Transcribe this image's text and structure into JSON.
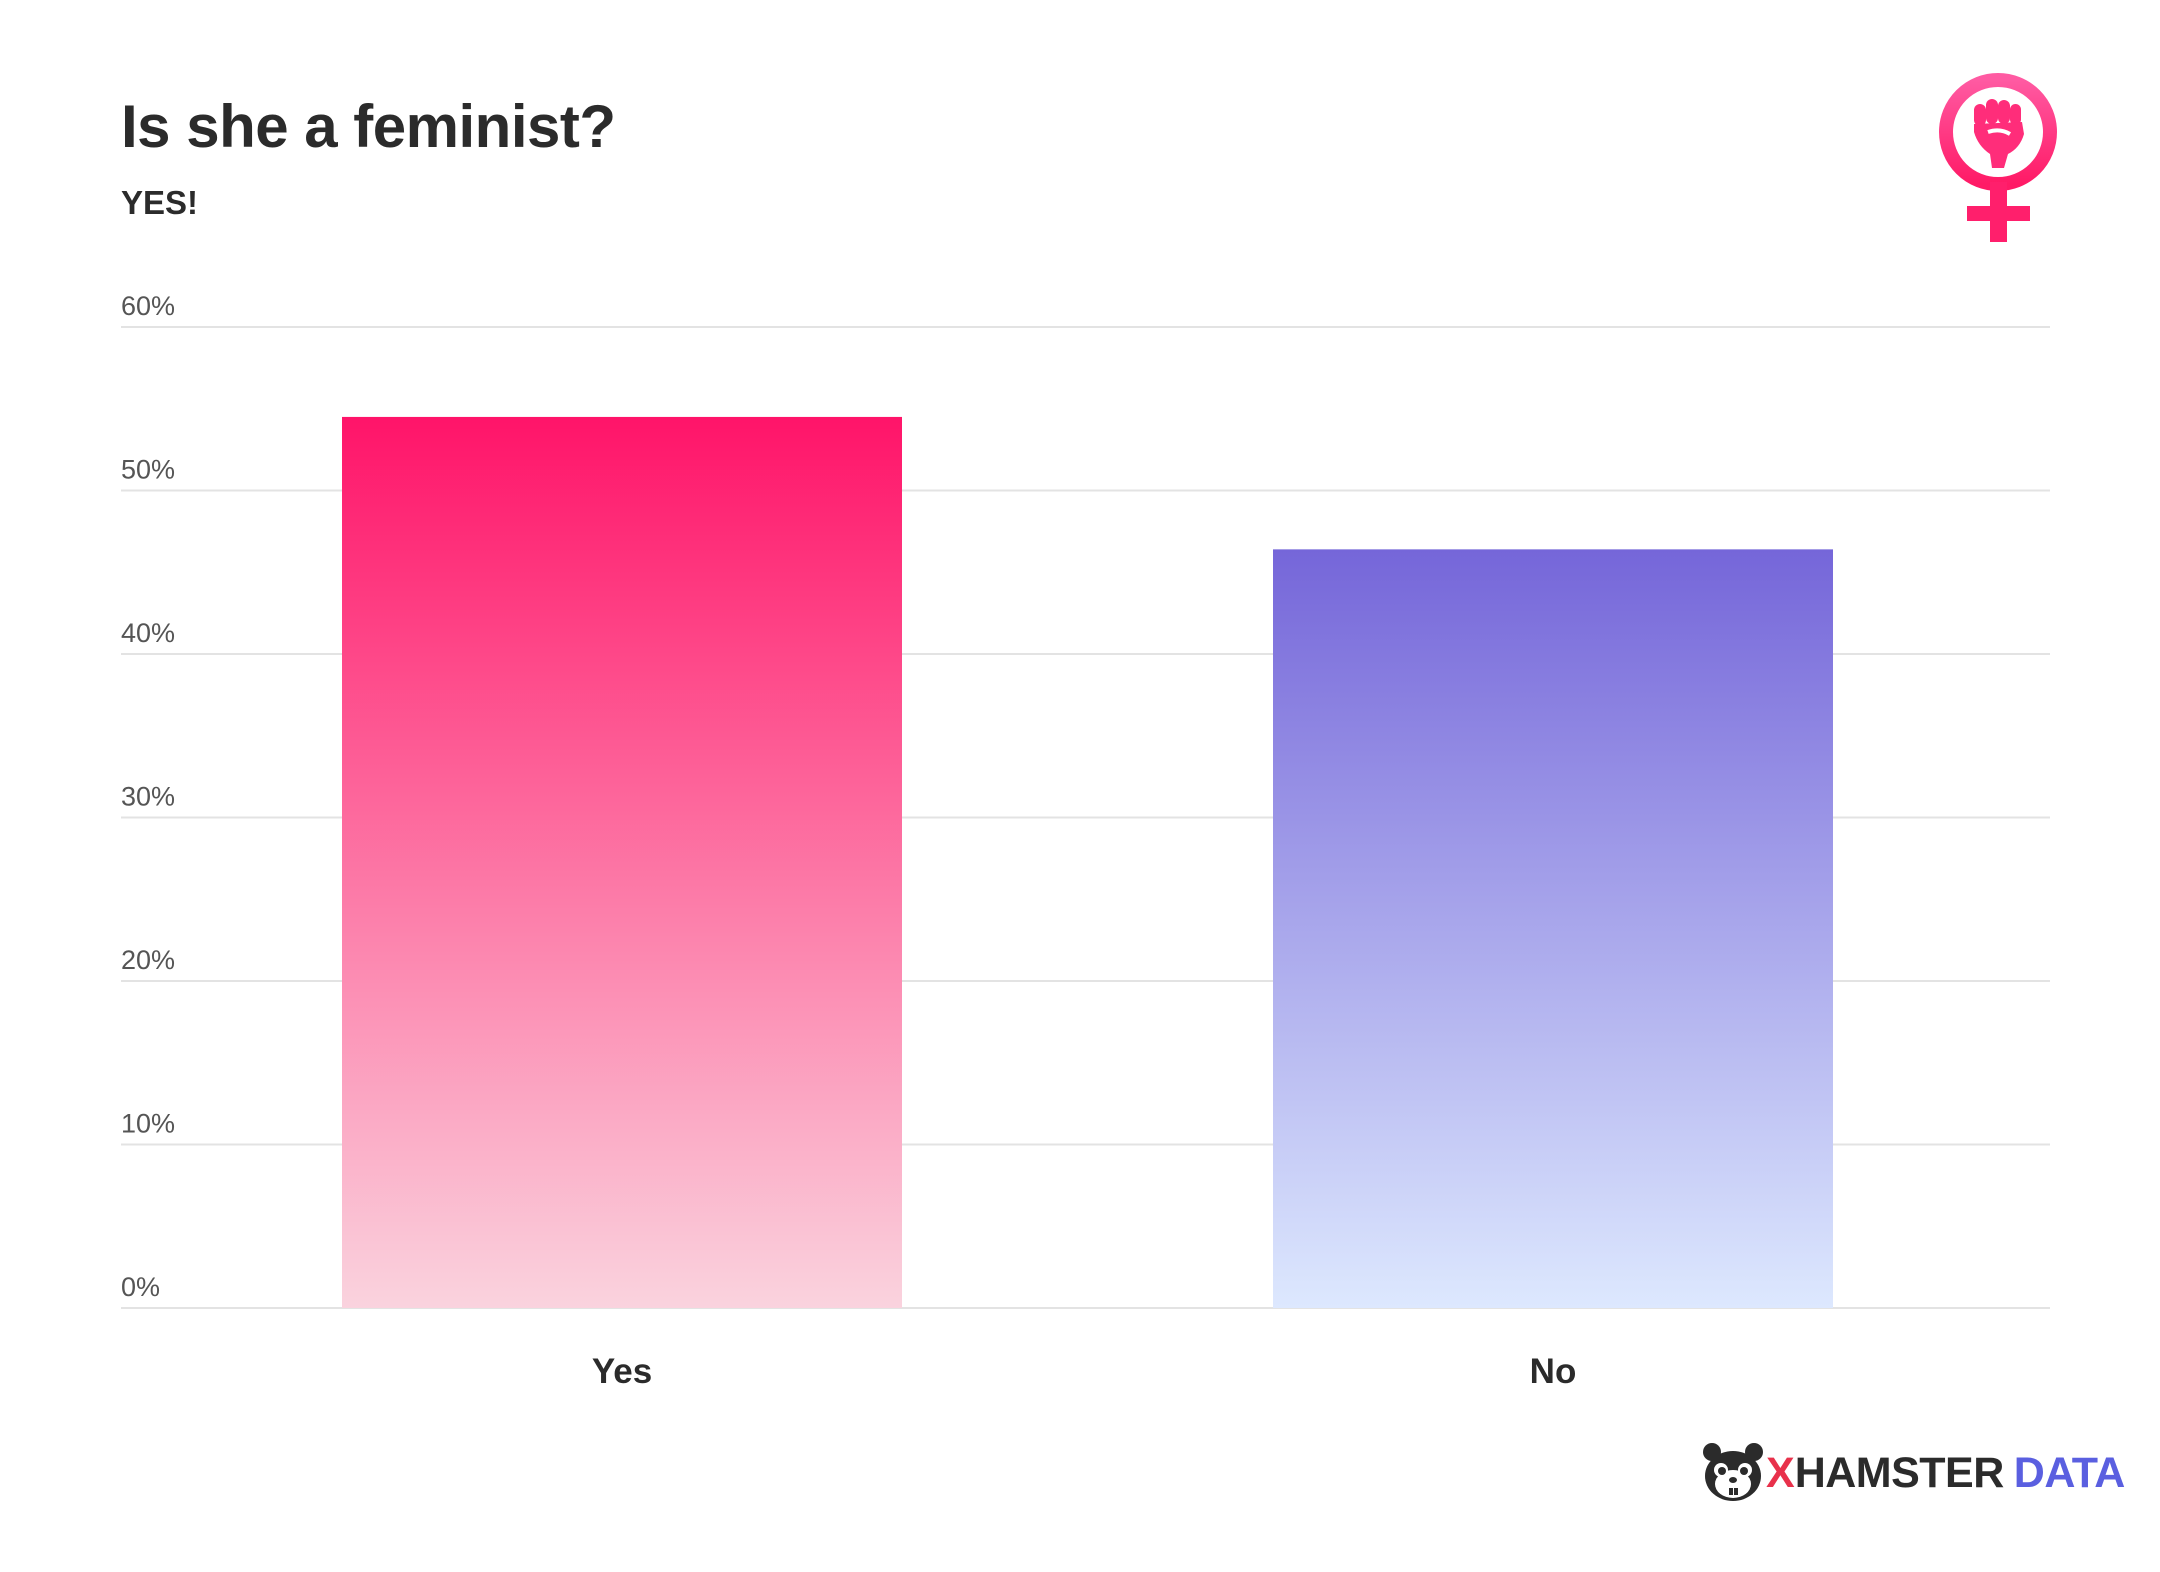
{
  "title": "Is she a feminist?",
  "subtitle": "YES!",
  "chart_data": {
    "type": "bar",
    "title": "Is she a feminist?",
    "subtitle": "YES!",
    "categories": [
      "Yes",
      "No"
    ],
    "values": [
      54.5,
      46.4
    ],
    "unit": "%",
    "ylim": [
      0,
      60
    ],
    "yticks": [
      "0%",
      "10%",
      "20%",
      "30%",
      "40%",
      "50%",
      "60%"
    ],
    "grid": true,
    "bar_colors": [
      {
        "top": "#ff1469",
        "bottom": "#fad3de"
      },
      {
        "top": "#7566d9",
        "bottom": "#dde8fe"
      }
    ]
  },
  "logo": {
    "icon": "feminism-fist-icon",
    "color": "#ff2d7a"
  },
  "brand": {
    "icon": "hamster-icon",
    "x_letter": "X",
    "name_1": "HAMSTER",
    "name_2": "DATA"
  }
}
